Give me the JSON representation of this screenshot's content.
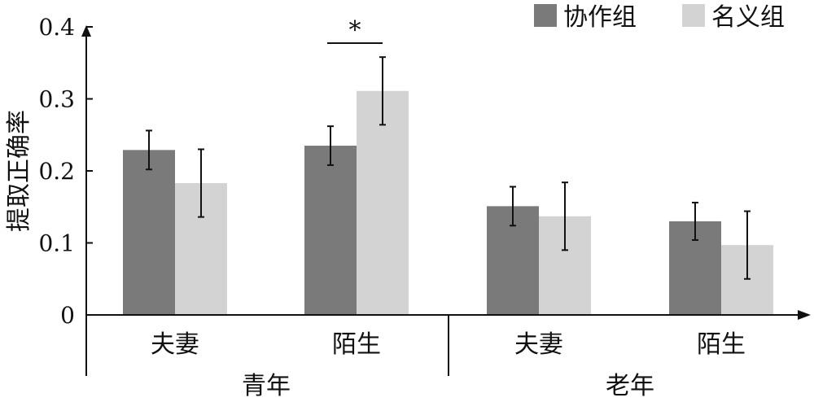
{
  "chart_data": {
    "type": "bar",
    "ylabel": "提取正确率",
    "ylim": [
      0,
      0.4
    ],
    "yticks": [
      {
        "value": 0,
        "label": "0"
      },
      {
        "value": 0.1,
        "label": "0.1"
      },
      {
        "value": 0.2,
        "label": "0.2"
      },
      {
        "value": 0.3,
        "label": "0.3"
      },
      {
        "value": 0.4,
        "label": "0.4"
      }
    ],
    "groups": [
      "青年",
      "老年"
    ],
    "categories": [
      "夫妻",
      "陌生",
      "夫妻",
      "陌生"
    ],
    "category_group": [
      0,
      0,
      1,
      1
    ],
    "series": [
      {
        "name": "协作组",
        "color": "#7a7a7a",
        "values": [
          0.229,
          0.235,
          0.151,
          0.13
        ],
        "error": [
          0.027,
          0.027,
          0.027,
          0.026
        ]
      },
      {
        "name": "名义组",
        "color": "#d3d3d3",
        "values": [
          0.183,
          0.311,
          0.137,
          0.097
        ],
        "error": [
          0.047,
          0.047,
          0.047,
          0.047
        ]
      }
    ],
    "significance": [
      {
        "category": 1,
        "label": "*"
      }
    ],
    "legend": "top-right",
    "grid": false
  }
}
